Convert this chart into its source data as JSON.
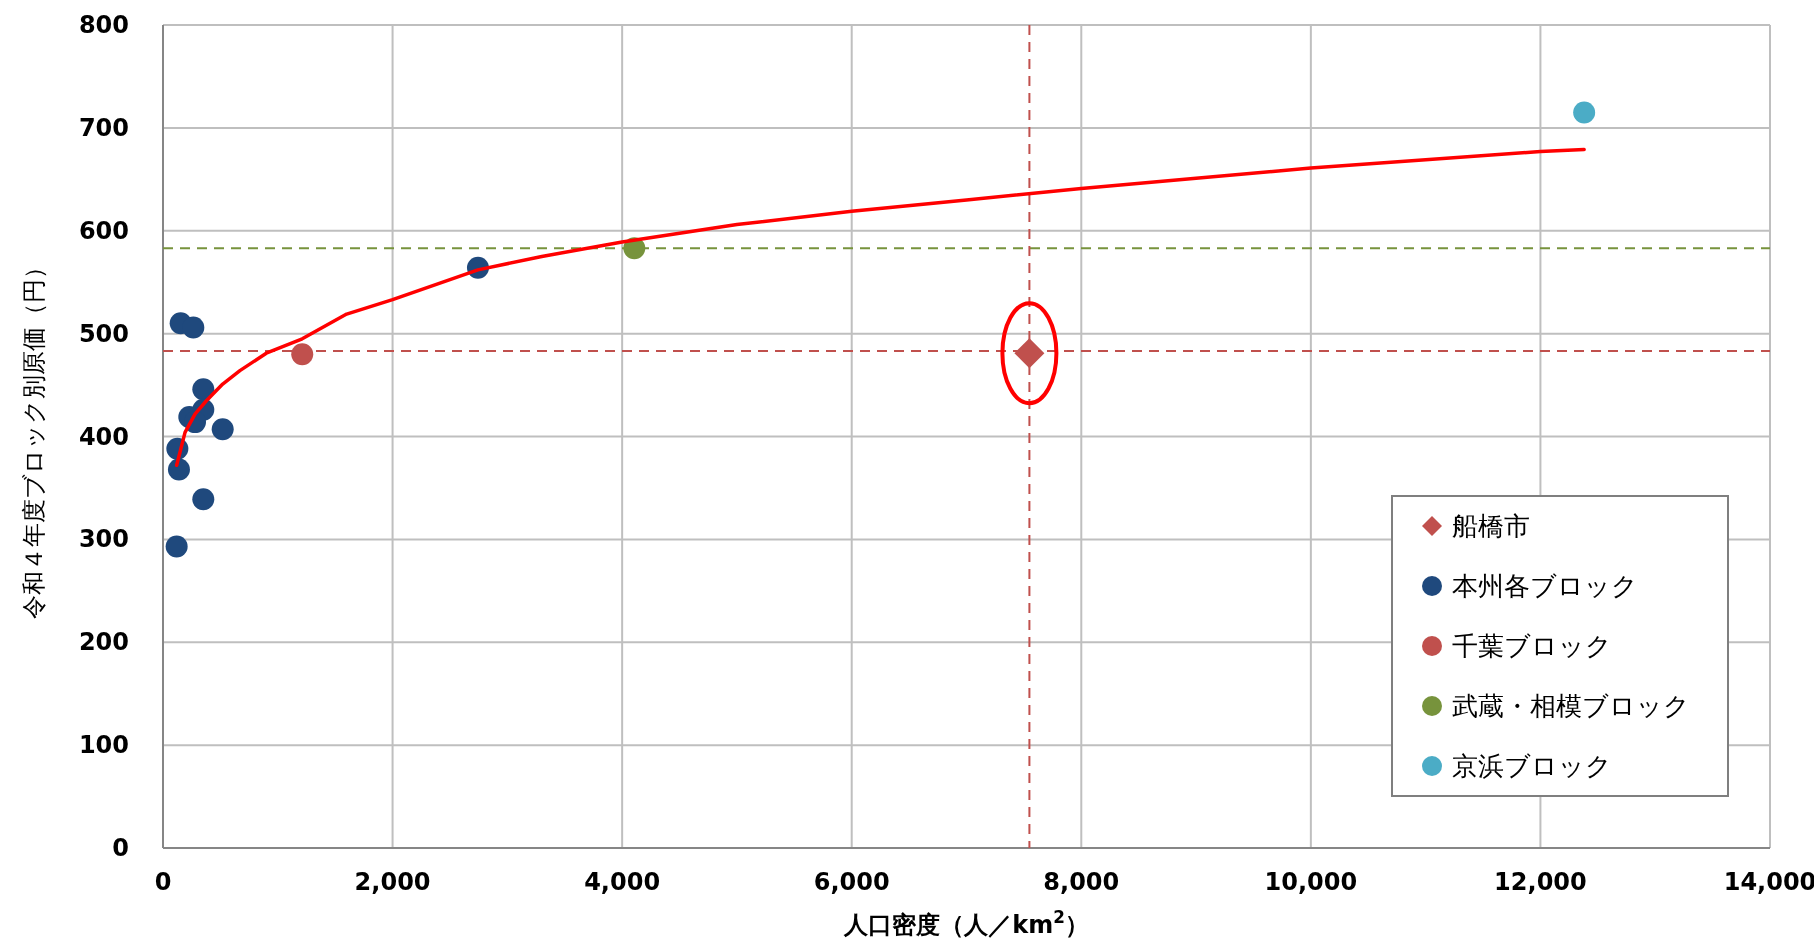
{
  "chart_data": {
    "type": "scatter",
    "xlabel": "人口密度（人／km$^{2}$）",
    "ylabel": "令和４年度ブロック別原価（円）",
    "xlim": [
      0,
      14000
    ],
    "ylim": [
      0,
      800
    ],
    "xticks": [
      0,
      {
        "value": 2000,
        "label": "2,000"
      },
      {
        "value": 4000,
        "label": "4,000"
      },
      {
        "value": 6000,
        "label": "6,000"
      },
      {
        "value": 8000,
        "label": "8,000"
      },
      {
        "value": 10000,
        "label": "10,000"
      },
      {
        "value": 12000,
        "label": "12,000"
      },
      {
        "value": 14000,
        "label": "14,000"
      }
    ],
    "yticks": [
      0,
      100,
      200,
      300,
      400,
      500,
      600,
      700,
      800
    ],
    "grid": true,
    "legend": "bottom right",
    "marker": "circle",
    "series": [
      {
        "name": "船橋市",
        "color": "#c0504d",
        "marker": "diamond",
        "x": [
          7548
        ],
        "values": [
          481
        ]
      },
      {
        "name": "本州各ブロック",
        "color": "#1f497d",
        "x": [
          154,
          264,
          351,
          351,
          229,
          279,
          520,
          125,
          139,
          351,
          119,
          2744
        ],
        "values": [
          510,
          506,
          446,
          426,
          419,
          414,
          407,
          388,
          368,
          339,
          293,
          564
        ]
      },
      {
        "name": "千葉ブロック",
        "color": "#c0504d",
        "x": [
          1213
        ],
        "values": [
          480
        ]
      },
      {
        "name": "武蔵・相模ブロック",
        "color": "#77933c",
        "x": [
          4106
        ],
        "values": [
          583
        ]
      },
      {
        "name": "京浜ブロック",
        "color": "#4bacc6",
        "x": [
          12381
        ],
        "values": [
          715
        ]
      },
      {
        "type": "line",
        "color": "#ff0000",
        "marker": "none",
        "x": [
          119,
          192,
          280,
          380,
          520,
          670,
          900,
          1213,
          1600,
          2000,
          2744,
          3300,
          4000,
          5000,
          6000,
          7000,
          8000,
          9000,
          10000,
          11000,
          12000,
          12381
        ],
        "values": [
          372,
          404,
          422,
          435,
          451,
          464,
          481,
          495,
          519,
          533,
          562,
          575,
          589,
          606,
          619,
          630,
          641,
          651,
          661,
          669,
          677,
          679
        ]
      }
    ],
    "ref_lines": [
      {
        "axis": "y",
        "value": 483,
        "color": "#c0504d",
        "line_style": "dashed"
      },
      {
        "axis": "y",
        "value": 583,
        "color": "#77933c",
        "line_style": "dashed"
      },
      {
        "axis": "x",
        "value": 7548,
        "color": "#c0504d",
        "line_style": "dashed"
      }
    ]
  }
}
